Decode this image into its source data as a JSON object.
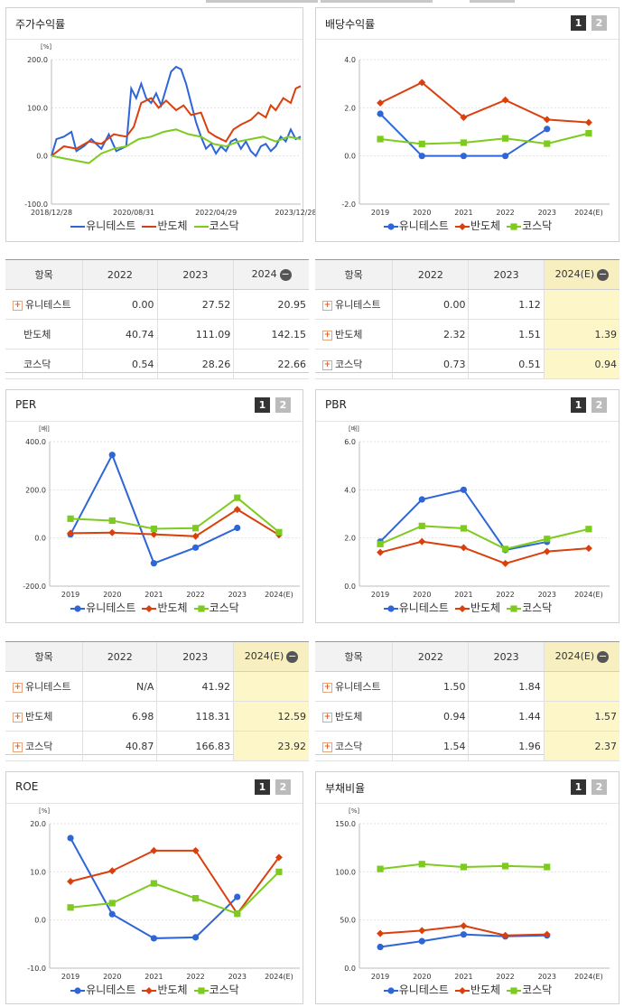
{
  "legend": {
    "a": "유니테스트",
    "b": "반도체",
    "c": "코스닥"
  },
  "colors": {
    "a": "#2e66d8",
    "b": "#d9400e",
    "c": "#7ccb1e"
  },
  "pages": {
    "p1": "1",
    "p2": "2"
  },
  "stock_chart": {
    "title": "주가수익률",
    "unit": "[%]",
    "y_ticks": [
      "200.0",
      "100.0",
      "0.0",
      "-100.0"
    ],
    "x_ticks": [
      "2018/12/28",
      "2020/08/31",
      "2022/04/29",
      "2023/12/28"
    ]
  },
  "dividend_chart": {
    "title": "배당수익률",
    "y_ticks": [
      "4.0",
      "2.0",
      "0.0",
      "-2.0"
    ],
    "x_ticks": [
      "2019",
      "2020",
      "2021",
      "2022",
      "2023",
      "2024(E)"
    ]
  },
  "per_chart": {
    "title": "PER",
    "unit": "[배]",
    "y_ticks": [
      "400.0",
      "200.0",
      "0.0",
      "-200.0"
    ],
    "x_ticks": [
      "2019",
      "2020",
      "2021",
      "2022",
      "2023",
      "2024(E)"
    ]
  },
  "pbr_chart": {
    "title": "PBR",
    "unit": "[배]",
    "y_ticks": [
      "6.0",
      "4.0",
      "2.0",
      "0.0"
    ],
    "x_ticks": [
      "2019",
      "2020",
      "2021",
      "2022",
      "2023",
      "2024(E)"
    ]
  },
  "roe_chart": {
    "title": "ROE",
    "unit": "[%]",
    "y_ticks": [
      "20.0",
      "10.0",
      "0.0",
      "-10.0"
    ],
    "x_ticks": [
      "2019",
      "2020",
      "2021",
      "2022",
      "2023",
      "2024(E)"
    ]
  },
  "debt_chart": {
    "title": "부채비율",
    "unit": "[%]",
    "y_ticks": [
      "150.0",
      "100.0",
      "50.0",
      "0.0"
    ],
    "x_ticks": [
      "2019",
      "2020",
      "2021",
      "2022",
      "2023",
      "2024(E)"
    ]
  },
  "tables": {
    "stock": {
      "cols": [
        "항목",
        "2022",
        "2023",
        "2024"
      ],
      "rows": [
        {
          "name": "유니테스트",
          "v": [
            "0.00",
            "27.52",
            "20.95"
          ]
        },
        {
          "name": "반도체",
          "v": [
            "40.74",
            "111.09",
            "142.15"
          ]
        },
        {
          "name": "코스닥",
          "v": [
            "0.54",
            "28.26",
            "22.66"
          ]
        }
      ]
    },
    "dividend": {
      "cols": [
        "항목",
        "2022",
        "2023",
        "2024(E)"
      ],
      "rows": [
        {
          "name": "유니테스트",
          "v": [
            "0.00",
            "1.12",
            ""
          ]
        },
        {
          "name": "반도체",
          "v": [
            "2.32",
            "1.51",
            "1.39"
          ]
        },
        {
          "name": "코스닥",
          "v": [
            "0.73",
            "0.51",
            "0.94"
          ]
        }
      ]
    },
    "per": {
      "cols": [
        "항목",
        "2022",
        "2023",
        "2024(E)"
      ],
      "rows": [
        {
          "name": "유니테스트",
          "v": [
            "N/A",
            "41.92",
            ""
          ]
        },
        {
          "name": "반도체",
          "v": [
            "6.98",
            "118.31",
            "12.59"
          ]
        },
        {
          "name": "코스닥",
          "v": [
            "40.87",
            "166.83",
            "23.92"
          ]
        }
      ]
    },
    "pbr": {
      "cols": [
        "항목",
        "2022",
        "2023",
        "2024(E)"
      ],
      "rows": [
        {
          "name": "유니테스트",
          "v": [
            "1.50",
            "1.84",
            ""
          ]
        },
        {
          "name": "반도체",
          "v": [
            "0.94",
            "1.44",
            "1.57"
          ]
        },
        {
          "name": "코스닥",
          "v": [
            "1.54",
            "1.96",
            "2.37"
          ]
        }
      ]
    }
  },
  "chart_data": [
    {
      "type": "line",
      "id": "stock",
      "ylim": [
        -100,
        200
      ],
      "series": [
        {
          "name": "유니테스트",
          "x": [
            0,
            0.02,
            0.05,
            0.08,
            0.1,
            0.13,
            0.16,
            0.2,
            0.23,
            0.26,
            0.3,
            0.32,
            0.34,
            0.36,
            0.38,
            0.4,
            0.42,
            0.44,
            0.46,
            0.48,
            0.5,
            0.52,
            0.54,
            0.56,
            0.58,
            0.6,
            0.62,
            0.64,
            0.66,
            0.68,
            0.7,
            0.72,
            0.74,
            0.76,
            0.78,
            0.8,
            0.82,
            0.84,
            0.86,
            0.88,
            0.9,
            0.92,
            0.94,
            0.96,
            0.98,
            1.0
          ],
          "y": [
            0,
            35,
            40,
            50,
            10,
            20,
            35,
            15,
            45,
            10,
            20,
            140,
            120,
            150,
            120,
            110,
            130,
            105,
            140,
            175,
            185,
            180,
            150,
            110,
            70,
            40,
            15,
            25,
            5,
            20,
            10,
            30,
            35,
            15,
            30,
            10,
            0,
            20,
            25,
            10,
            20,
            40,
            30,
            55,
            35,
            40
          ]
        },
        {
          "name": "반도체",
          "x": [
            0,
            0.05,
            0.1,
            0.15,
            0.2,
            0.25,
            0.3,
            0.33,
            0.36,
            0.4,
            0.43,
            0.46,
            0.5,
            0.53,
            0.56,
            0.6,
            0.63,
            0.66,
            0.7,
            0.73,
            0.76,
            0.8,
            0.83,
            0.86,
            0.88,
            0.9,
            0.93,
            0.96,
            0.98,
            1.0
          ],
          "y": [
            0,
            20,
            15,
            30,
            25,
            45,
            40,
            60,
            110,
            120,
            100,
            115,
            95,
            105,
            85,
            90,
            50,
            40,
            30,
            55,
            65,
            75,
            90,
            80,
            105,
            95,
            120,
            110,
            140,
            145
          ]
        },
        {
          "name": "코스닥",
          "x": [
            0,
            0.05,
            0.1,
            0.15,
            0.2,
            0.25,
            0.3,
            0.35,
            0.4,
            0.45,
            0.5,
            0.55,
            0.6,
            0.65,
            0.7,
            0.75,
            0.8,
            0.85,
            0.9,
            0.95,
            1.0
          ],
          "y": [
            0,
            -5,
            -10,
            -15,
            5,
            15,
            20,
            35,
            40,
            50,
            55,
            45,
            40,
            25,
            20,
            30,
            35,
            40,
            30,
            40,
            35
          ]
        }
      ]
    },
    {
      "type": "line",
      "id": "dividend",
      "categories": [
        "2019",
        "2020",
        "2021",
        "2022",
        "2023",
        "2024(E)"
      ],
      "ylim": [
        -2,
        4
      ],
      "series": [
        {
          "name": "유니테스트",
          "values": [
            1.75,
            0.0,
            0.0,
            0.0,
            1.12,
            null
          ]
        },
        {
          "name": "반도체",
          "values": [
            2.2,
            3.05,
            1.6,
            2.32,
            1.51,
            1.39
          ]
        },
        {
          "name": "코스닥",
          "values": [
            0.7,
            0.5,
            0.55,
            0.73,
            0.51,
            0.94
          ]
        }
      ]
    },
    {
      "type": "line",
      "id": "per",
      "categories": [
        "2019",
        "2020",
        "2021",
        "2022",
        "2023",
        "2024(E)"
      ],
      "ylim": [
        -200,
        400
      ],
      "series": [
        {
          "name": "유니테스트",
          "values": [
            15,
            345,
            -105,
            -40,
            41.92,
            null
          ]
        },
        {
          "name": "반도체",
          "values": [
            20,
            22,
            15,
            6.98,
            118.31,
            12.59
          ]
        },
        {
          "name": "코스닥",
          "values": [
            80,
            72,
            38,
            40.87,
            166.83,
            23.92
          ]
        }
      ]
    },
    {
      "type": "line",
      "id": "pbr",
      "categories": [
        "2019",
        "2020",
        "2021",
        "2022",
        "2023",
        "2024(E)"
      ],
      "ylim": [
        0,
        6
      ],
      "series": [
        {
          "name": "유니테스트",
          "values": [
            1.85,
            3.6,
            4.0,
            1.5,
            1.84,
            null
          ]
        },
        {
          "name": "반도체",
          "values": [
            1.4,
            1.85,
            1.6,
            0.94,
            1.44,
            1.57
          ]
        },
        {
          "name": "코스닥",
          "values": [
            1.75,
            2.5,
            2.4,
            1.54,
            1.96,
            2.37
          ]
        }
      ]
    },
    {
      "type": "line",
      "id": "roe",
      "categories": [
        "2019",
        "2020",
        "2021",
        "2022",
        "2023",
        "2024(E)"
      ],
      "ylim": [
        -10,
        20
      ],
      "series": [
        {
          "name": "유니테스트",
          "values": [
            17.0,
            1.2,
            -3.8,
            -3.6,
            4.8,
            null
          ]
        },
        {
          "name": "반도체",
          "values": [
            8.0,
            10.2,
            14.4,
            14.4,
            1.3,
            13.0
          ]
        },
        {
          "name": "코스닥",
          "values": [
            2.6,
            3.5,
            7.6,
            4.5,
            1.3,
            10.0
          ]
        }
      ]
    },
    {
      "type": "line",
      "id": "debt",
      "categories": [
        "2019",
        "2020",
        "2021",
        "2022",
        "2023",
        "2024(E)"
      ],
      "ylim": [
        0,
        150
      ],
      "series": [
        {
          "name": "유니테스트",
          "values": [
            22,
            28,
            35,
            33,
            34,
            null
          ]
        },
        {
          "name": "반도체",
          "values": [
            36,
            39,
            44,
            34,
            35,
            null
          ]
        },
        {
          "name": "코스닥",
          "values": [
            103,
            108,
            105,
            106,
            105,
            null
          ]
        }
      ]
    }
  ]
}
